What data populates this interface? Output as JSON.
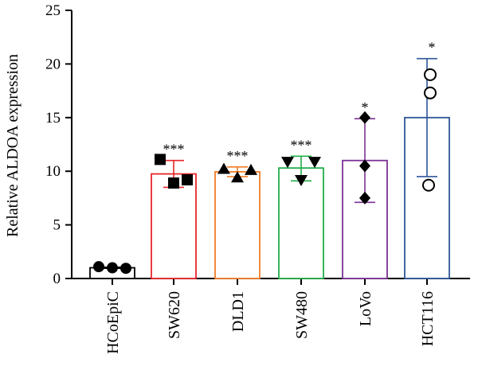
{
  "chart_data": {
    "type": "bar",
    "title": "",
    "xlabel": "",
    "ylabel": "Relative ALDOA expression",
    "ylim": [
      0,
      25
    ],
    "yticks": [
      0,
      5,
      10,
      15,
      20,
      25
    ],
    "grid": false,
    "legend": "none",
    "categories": [
      "HCoEpiC",
      "SW620",
      "DLD1",
      "SW480",
      "LoVo",
      "HCT116"
    ],
    "values": [
      1.0,
      9.75,
      9.95,
      10.3,
      11.0,
      15.0
    ],
    "error": [
      {
        "low": 0.95,
        "high": 1.05
      },
      {
        "low": 8.5,
        "high": 11.0
      },
      {
        "low": 9.5,
        "high": 10.4
      },
      {
        "low": 9.1,
        "high": 11.4
      },
      {
        "low": 7.1,
        "high": 14.9
      },
      {
        "low": 9.5,
        "high": 20.5
      }
    ],
    "points": [
      [
        1.1,
        1.0,
        0.95
      ],
      [
        11.1,
        8.9,
        9.2
      ],
      [
        10.2,
        9.4,
        10.1
      ],
      [
        10.9,
        9.2,
        10.9
      ],
      [
        15.0,
        10.5,
        7.5
      ],
      [
        19.0,
        17.3,
        8.7
      ]
    ],
    "significance": [
      "",
      "***",
      "***",
      "***",
      "*",
      "*"
    ],
    "markers": [
      "circle-filled",
      "square-filled",
      "triangle-up-filled",
      "triangle-down-filled",
      "diamond-filled",
      "circle-open"
    ],
    "colors": [
      "#000000",
      "#e8262b",
      "#f07d28",
      "#21ad4a",
      "#7b3294",
      "#2f5597"
    ]
  }
}
